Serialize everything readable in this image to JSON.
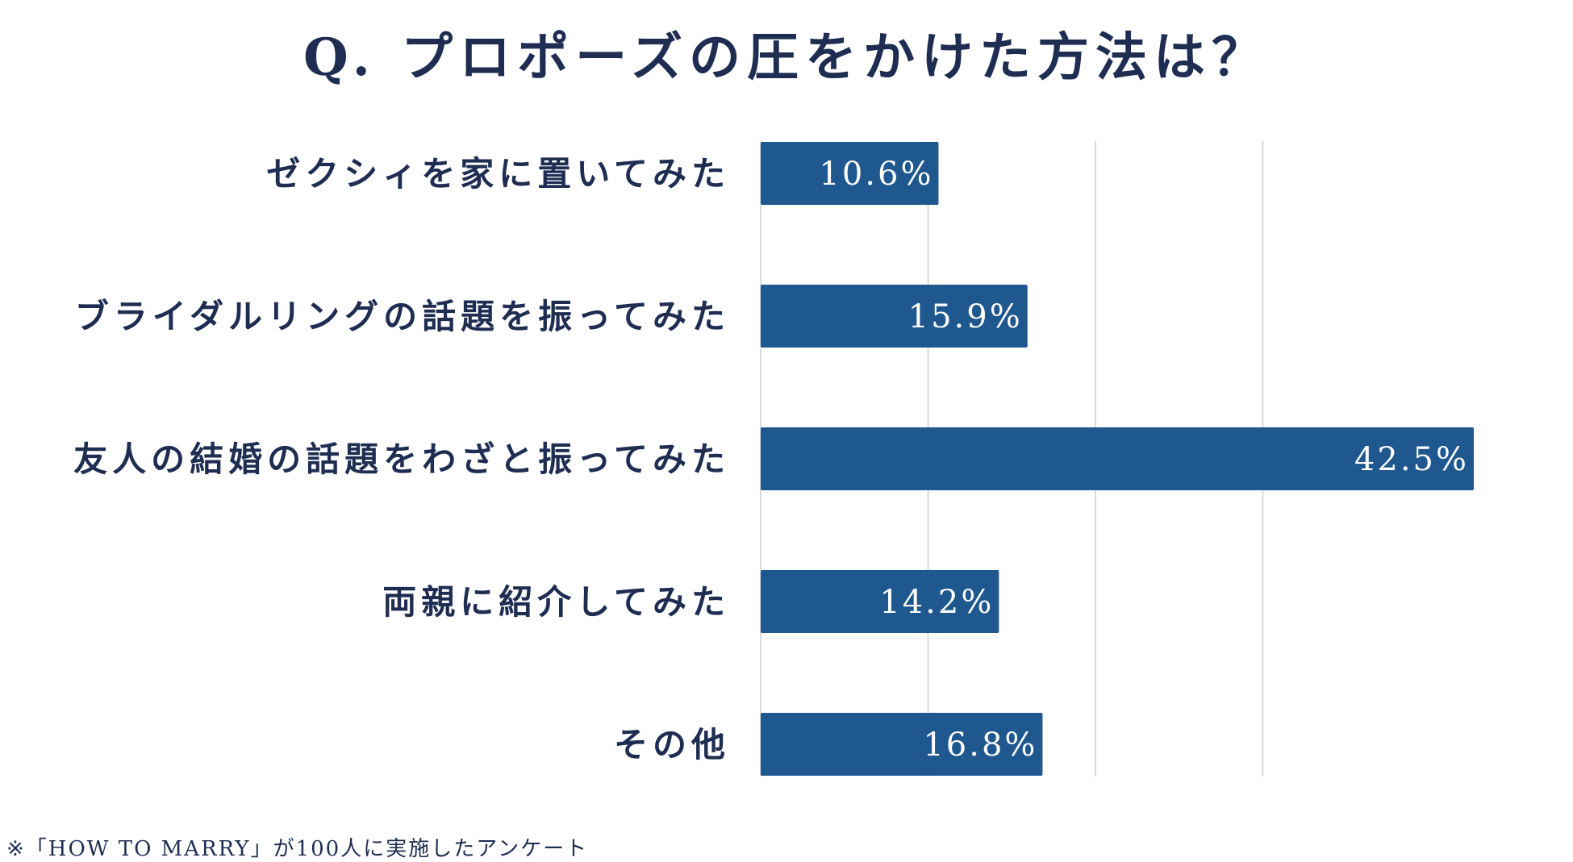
{
  "chart_data": {
    "type": "bar",
    "orientation": "horizontal",
    "title": "Q. プロポーズの圧をかけた方法は？",
    "categories": [
      "ゼクシィを家に置いてみた",
      "ブライダルリングの話題を振ってみた",
      "友人の結婚の話題をわざと振ってみた",
      "両親に紹介してみた",
      "その他"
    ],
    "values": [
      10.6,
      15.9,
      42.5,
      14.2,
      16.8
    ],
    "value_labels": [
      "10.6%",
      "15.9%",
      "42.5%",
      "14.2%",
      "16.8%"
    ],
    "xlim": [
      0,
      45
    ],
    "grid": true,
    "legend": "none",
    "colors": {
      "bar": "#1f578f",
      "text": "#1f2d52",
      "grid": "#cfcfcf",
      "value_text": "#ffffff"
    }
  },
  "footnote": "※「HOW TO MARRY」が100人に実施したアンケート"
}
